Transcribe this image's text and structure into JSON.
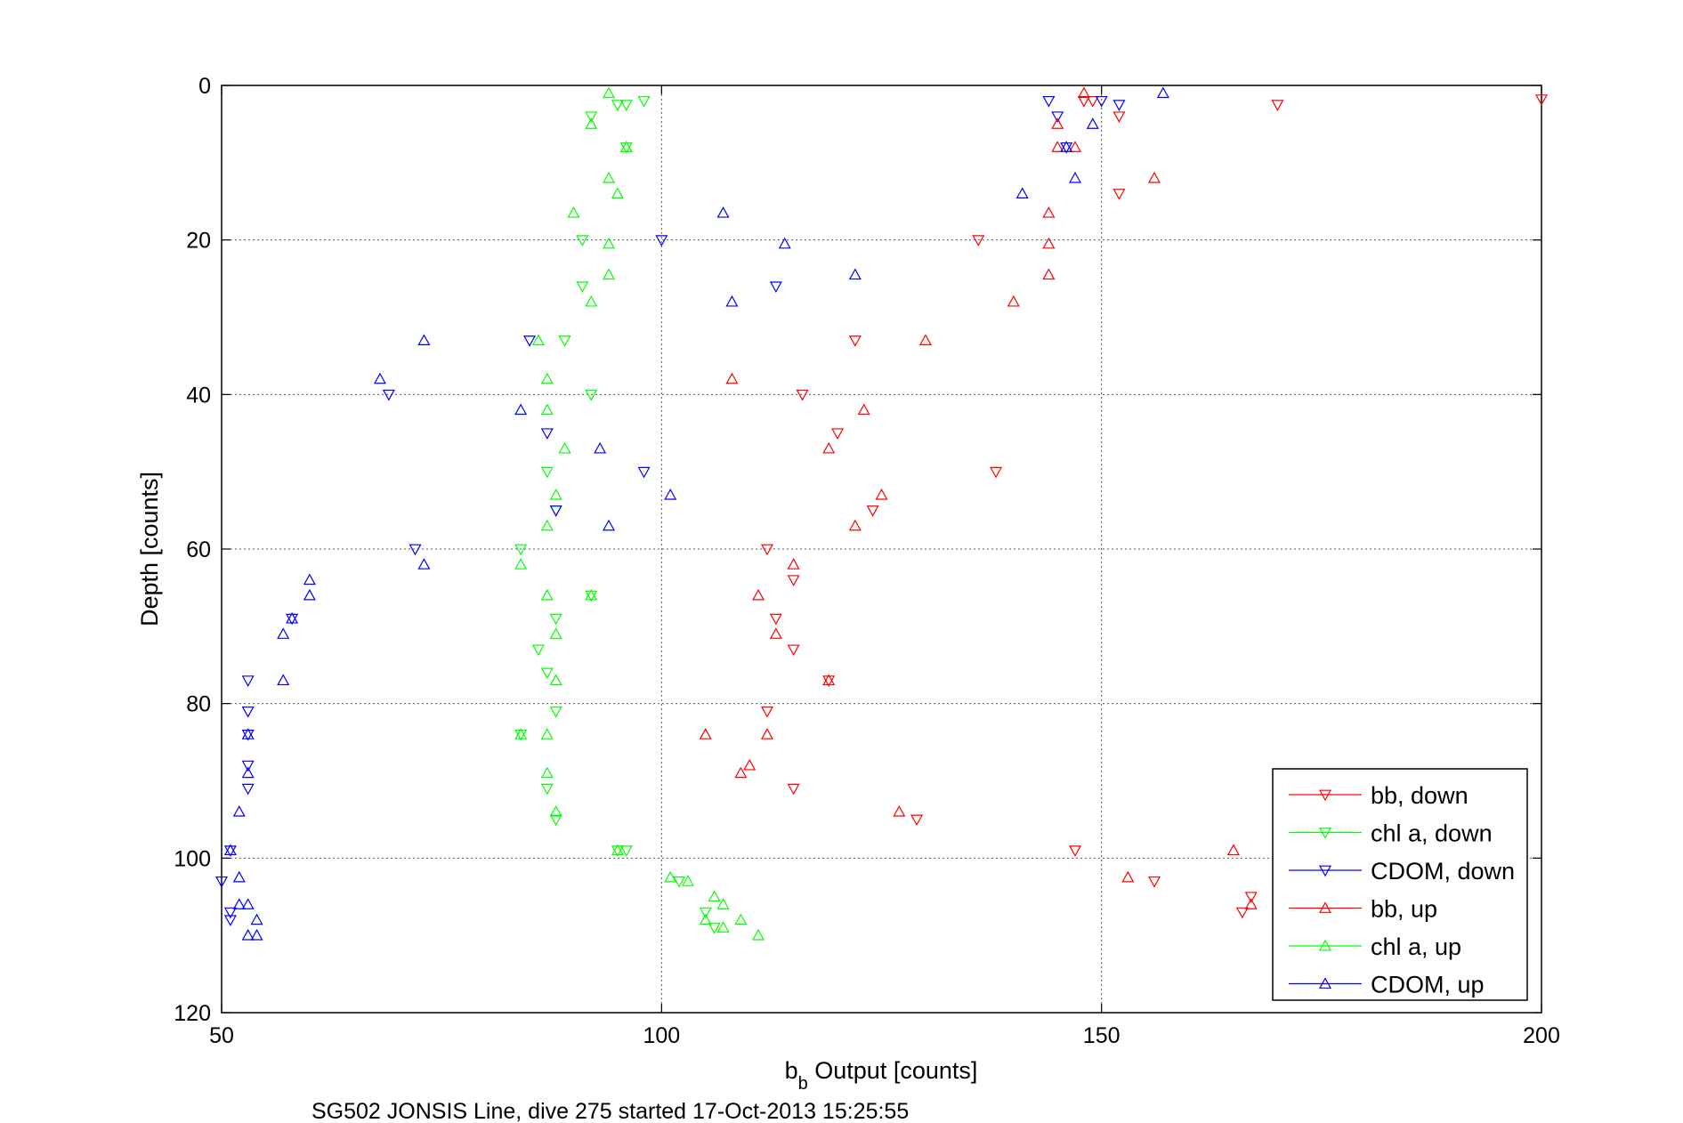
{
  "chart_data": {
    "type": "scatter",
    "xlabel": "b",
    "xlabel_sub": "b",
    "xlabel_rest": " Output [counts]",
    "ylabel": "Depth [counts]",
    "caption": "SG502 JONSIS Line, dive 275 started 17-Oct-2013 15:25:55",
    "xlim": [
      50,
      200
    ],
    "ylim": [
      0,
      120
    ],
    "y_reversed": true,
    "xticks": [
      "50",
      "100",
      "150",
      "200"
    ],
    "yticks": [
      "0",
      "20",
      "40",
      "60",
      "80",
      "100",
      "120"
    ],
    "grid": true,
    "legend_position": "bottom-right",
    "series": [
      {
        "name": "bb, down",
        "color": "#ff0000",
        "marker": "triangle-down",
        "x": [
          148,
          149,
          170,
          200,
          152,
          152,
          136,
          122,
          116,
          120,
          138,
          124,
          112,
          115,
          115,
          113,
          119,
          112,
          115,
          129,
          147,
          156,
          167,
          166
        ],
        "y": [
          2,
          2,
          2.5,
          1.8,
          4,
          14,
          20,
          33,
          40,
          45,
          50,
          55,
          60,
          64,
          73,
          69,
          77,
          81,
          91,
          95,
          99,
          103,
          105,
          107
        ]
      },
      {
        "name": "chl a, down",
        "color": "#00ff00",
        "marker": "triangle-down",
        "x": [
          95,
          98,
          96,
          92,
          96,
          91,
          91,
          89,
          92,
          88,
          87,
          84,
          86,
          88,
          92,
          87,
          88,
          84,
          87,
          88,
          96,
          95,
          102,
          105,
          106
        ],
        "y": [
          2.5,
          2,
          2.5,
          4,
          8,
          20,
          26,
          33,
          40,
          55,
          50,
          60,
          73,
          69,
          66,
          76,
          81,
          84,
          91,
          95,
          99,
          99,
          103,
          107,
          109
        ]
      },
      {
        "name": "CDOM, down",
        "color": "#0000ff",
        "marker": "triangle-down",
        "x": [
          144,
          150,
          152,
          145,
          146,
          100,
          113,
          85,
          69,
          87,
          98,
          88,
          72,
          58,
          53,
          53,
          53,
          53,
          53,
          51,
          50,
          51,
          51
        ],
        "y": [
          2,
          2,
          2.5,
          4,
          8,
          20,
          26,
          33,
          40,
          45,
          50,
          55,
          60,
          69,
          77,
          81,
          88,
          91,
          84,
          99,
          103,
          107,
          108
        ]
      },
      {
        "name": "bb, up",
        "color": "#ff0000",
        "marker": "triangle-up",
        "x": [
          148,
          145,
          147,
          145,
          156,
          144,
          144,
          144,
          140,
          130,
          108,
          123,
          119,
          125,
          122,
          115,
          111,
          119,
          113,
          112,
          105,
          109,
          110,
          127,
          165,
          153,
          167
        ],
        "y": [
          1,
          5,
          8,
          8,
          12,
          16.5,
          20.5,
          24.5,
          28,
          33,
          38,
          42,
          47,
          53,
          57,
          62,
          66,
          77,
          71,
          84,
          84,
          89,
          88,
          94,
          99,
          102.5,
          106
        ]
      },
      {
        "name": "chl a, up",
        "color": "#00ff00",
        "marker": "triangle-up",
        "x": [
          94,
          92,
          96,
          94,
          95,
          90,
          94,
          94,
          92,
          86,
          87,
          87,
          89,
          88,
          87,
          84,
          87,
          88,
          92,
          88,
          84,
          87,
          87,
          88,
          95,
          101,
          103,
          106,
          107,
          105,
          109,
          107,
          111
        ],
        "y": [
          1,
          5,
          8,
          12,
          14,
          16.5,
          20.5,
          24.5,
          28,
          33,
          38,
          42,
          47,
          53,
          57,
          62,
          66,
          77,
          66,
          71,
          84,
          84,
          89,
          94,
          99,
          102.5,
          103,
          105,
          106,
          108,
          108,
          109,
          110
        ]
      },
      {
        "name": "CDOM, up",
        "color": "#0000ff",
        "marker": "triangle-up",
        "x": [
          157,
          149,
          146,
          147,
          141,
          107,
          114,
          122,
          108,
          73,
          68,
          84,
          93,
          101,
          94,
          73,
          60,
          60,
          57,
          58,
          57,
          53,
          53,
          52,
          51,
          52,
          52,
          53,
          54,
          53,
          54
        ],
        "y": [
          1,
          5,
          8,
          12,
          14,
          16.5,
          20.5,
          24.5,
          28,
          33,
          38,
          42,
          47,
          53,
          57,
          62,
          64,
          66,
          71,
          69,
          77,
          84,
          89,
          94,
          99,
          102.5,
          106,
          106,
          108,
          110,
          110
        ]
      }
    ]
  }
}
